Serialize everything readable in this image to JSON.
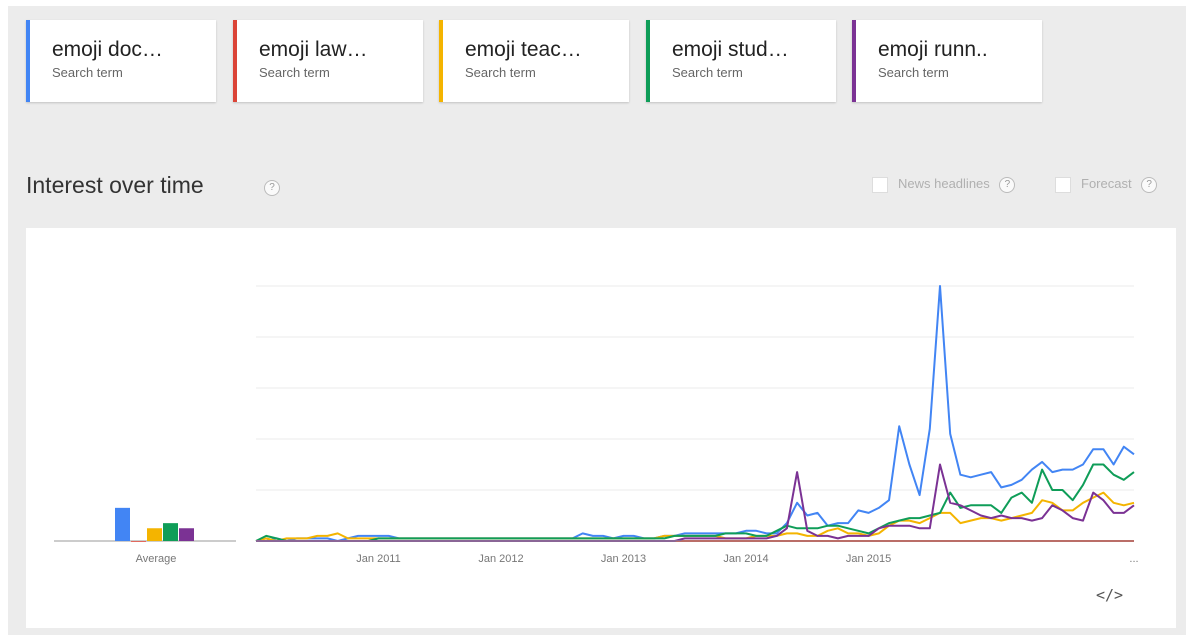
{
  "search_terms": [
    {
      "label": "emoji doc…",
      "sublabel": "Search term",
      "color": "#4285f4"
    },
    {
      "label": "emoji law…",
      "sublabel": "Search term",
      "color": "#db4437"
    },
    {
      "label": "emoji teac…",
      "sublabel": "Search term",
      "color": "#f4b400"
    },
    {
      "label": "emoji stud…",
      "sublabel": "Search term",
      "color": "#0f9d58"
    },
    {
      "label": "emoji runn..",
      "sublabel": "Search term",
      "color": "#7b3294"
    }
  ],
  "section_title": "Interest over time",
  "help_glyph": "?",
  "options": {
    "news_headlines": "News headlines",
    "forecast": "Forecast"
  },
  "embed_label": "</>",
  "chart_data": {
    "type": "line",
    "title": "",
    "xlabel": "",
    "ylabel": "",
    "ylim": [
      0,
      100
    ],
    "grid": true,
    "x_start": "2010-01",
    "x_frequency": "monthly",
    "x_tick_labels": [
      "Jan 2011",
      "Jan 2012",
      "Jan 2013",
      "Jan 2014",
      "Jan 2015"
    ],
    "x_tick_dates": [
      "2011-01",
      "2012-01",
      "2013-01",
      "2014-01",
      "2015-01"
    ],
    "x_overflow_label": "...",
    "average_label": "Average",
    "averages": [
      13,
      0,
      5,
      7,
      5
    ],
    "colors": [
      "#4285f4",
      "#db4437",
      "#f4b400",
      "#0f9d58",
      "#7b3294"
    ],
    "series": [
      {
        "values": [
          0,
          0,
          1,
          0,
          1,
          1,
          1,
          1,
          0,
          1,
          2,
          2,
          2,
          2,
          1,
          1,
          1,
          1,
          1,
          1,
          1,
          1,
          1,
          1,
          1,
          1,
          1,
          1,
          1,
          1,
          1,
          1,
          3,
          2,
          2,
          1,
          2,
          2,
          1,
          1,
          2,
          2,
          3,
          3,
          3,
          3,
          3,
          3,
          4,
          4,
          3,
          3,
          7,
          15,
          10,
          11,
          6,
          7,
          7,
          12,
          11,
          13,
          16,
          45,
          30,
          18,
          44,
          100,
          42,
          26,
          25,
          26,
          27,
          21,
          22,
          24,
          28,
          31,
          27,
          28,
          28,
          30,
          36,
          36,
          30,
          37,
          34
        ]
      },
      {
        "values": [
          0,
          0,
          0,
          0,
          0,
          0,
          0,
          0,
          0,
          0,
          0,
          0,
          0,
          0,
          0,
          0,
          0,
          0,
          0,
          0,
          0,
          0,
          0,
          0,
          0,
          0,
          0,
          0,
          0,
          0,
          0,
          0,
          0,
          0,
          0,
          0,
          0,
          0,
          0,
          0,
          0,
          0,
          0,
          0,
          0,
          0,
          0,
          0,
          0,
          0,
          0,
          0,
          0,
          0,
          0,
          0,
          0,
          0,
          0,
          0,
          0,
          0,
          0,
          0,
          0,
          0,
          0,
          0,
          0,
          0,
          0,
          0,
          0,
          0,
          0,
          0,
          0,
          0,
          0,
          0,
          0,
          0,
          0,
          0,
          0,
          0,
          0
        ]
      },
      {
        "values": [
          0,
          1,
          0,
          1,
          1,
          1,
          2,
          2,
          3,
          1,
          1,
          1,
          1,
          1,
          1,
          1,
          1,
          1,
          1,
          1,
          1,
          1,
          1,
          1,
          1,
          1,
          1,
          1,
          1,
          1,
          1,
          1,
          1,
          1,
          1,
          1,
          1,
          1,
          1,
          1,
          2,
          2,
          2,
          2,
          2,
          2,
          1,
          1,
          1,
          2,
          2,
          2,
          3,
          3,
          2,
          2,
          4,
          5,
          3,
          3,
          2,
          3,
          6,
          8,
          8,
          7,
          9,
          11,
          11,
          7,
          8,
          9,
          9,
          8,
          9,
          10,
          11,
          16,
          15,
          12,
          12,
          15,
          17,
          19,
          15,
          14,
          15
        ]
      },
      {
        "values": [
          0,
          2,
          1,
          0,
          0,
          0,
          0,
          0,
          0,
          0,
          0,
          0,
          1,
          1,
          1,
          1,
          1,
          1,
          1,
          1,
          1,
          1,
          1,
          1,
          1,
          1,
          1,
          1,
          1,
          1,
          1,
          1,
          1,
          1,
          1,
          1,
          1,
          1,
          1,
          1,
          1,
          2,
          2,
          2,
          2,
          2,
          3,
          3,
          3,
          2,
          2,
          4,
          6,
          5,
          5,
          5,
          6,
          6,
          5,
          4,
          3,
          5,
          7,
          8,
          9,
          9,
          10,
          11,
          19,
          13,
          14,
          14,
          14,
          11,
          17,
          19,
          15,
          28,
          20,
          20,
          16,
          22,
          30,
          30,
          26,
          24,
          27
        ]
      },
      {
        "values": [
          0,
          0,
          0,
          0,
          0,
          0,
          0,
          0,
          0,
          0,
          0,
          0,
          0,
          0,
          0,
          0,
          0,
          0,
          0,
          0,
          0,
          0,
          0,
          0,
          0,
          0,
          0,
          0,
          0,
          0,
          0,
          0,
          0,
          0,
          0,
          0,
          0,
          0,
          0,
          0,
          0,
          0,
          1,
          1,
          1,
          1,
          1,
          1,
          1,
          1,
          1,
          2,
          5,
          27,
          4,
          2,
          2,
          1,
          2,
          2,
          2,
          5,
          6,
          6,
          6,
          5,
          5,
          30,
          15,
          14,
          12,
          10,
          9,
          10,
          9,
          9,
          8,
          9,
          14,
          12,
          9,
          8,
          19,
          16,
          11,
          11,
          14
        ]
      }
    ]
  }
}
